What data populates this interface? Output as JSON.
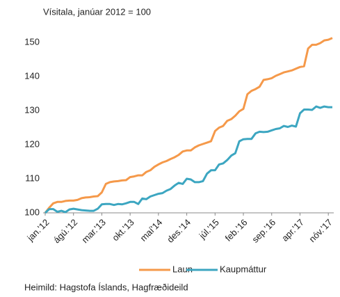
{
  "chart_data": {
    "type": "line",
    "subtitle": "Vísitala, janúar 2012 = 100",
    "source": "Heimild: Hagstofa Íslands, Hagfræðideild",
    "categories": [
      "jan.'12",
      null,
      null,
      null,
      null,
      null,
      null,
      "ágú.'12",
      null,
      null,
      null,
      null,
      null,
      null,
      "mar.'13",
      null,
      null,
      null,
      null,
      null,
      null,
      "okt.'13",
      null,
      null,
      null,
      null,
      null,
      null,
      "maí'14",
      null,
      null,
      null,
      null,
      null,
      null,
      "des.'14",
      null,
      null,
      null,
      null,
      null,
      null,
      "júl.'15",
      null,
      null,
      null,
      null,
      null,
      null,
      "feb.'16",
      null,
      null,
      null,
      null,
      null,
      null,
      "sep.'16",
      null,
      null,
      null,
      null,
      null,
      null,
      "apr.'17",
      null,
      null,
      null,
      null,
      null,
      null,
      "nóv.'17",
      null
    ],
    "series": [
      {
        "name": "Laun",
        "color": "#f5994a",
        "values": [
          100,
          101.5,
          102.8,
          103.2,
          103.2,
          103.5,
          103.6,
          103.6,
          103.8,
          104.3,
          104.5,
          104.6,
          104.8,
          104.9,
          106,
          108.5,
          109,
          109.2,
          109.3,
          109.5,
          109.6,
          110.5,
          110.7,
          111,
          111,
          112,
          112.5,
          113.5,
          114.2,
          114.8,
          115.2,
          115.8,
          116.3,
          117,
          118,
          118.3,
          118.3,
          119.2,
          119.8,
          120.2,
          120.6,
          121,
          124,
          125,
          125.5,
          127,
          127.5,
          128.5,
          129.8,
          130.5,
          134.8,
          135.8,
          136.3,
          137,
          139,
          139.2,
          139.5,
          140.2,
          140.7,
          141.2,
          141.5,
          141.8,
          142.3,
          142.8,
          143,
          148.2,
          149.3,
          149.3,
          149.8,
          150.6,
          150.8,
          151.3
        ]
      },
      {
        "name": "Kaupmáttur",
        "color": "#3ca6c1",
        "values": [
          100,
          101.1,
          101.1,
          100.3,
          100.6,
          100.2,
          101,
          101.2,
          101,
          100.8,
          100.7,
          100.6,
          100.6,
          101.2,
          102.5,
          102.6,
          102.6,
          102.3,
          102.6,
          102.5,
          102.8,
          103.2,
          103.2,
          102.6,
          104.2,
          104,
          104.8,
          105.2,
          105.6,
          105.8,
          106.5,
          107,
          108,
          108.8,
          108.5,
          110,
          109.8,
          109,
          109,
          109.3,
          111.5,
          112.5,
          112.5,
          114.2,
          114.5,
          115.5,
          116.8,
          117.5,
          121,
          121.6,
          121.7,
          121.7,
          123.3,
          123.8,
          123.7,
          123.8,
          124.2,
          124.6,
          124.8,
          125.5,
          125.2,
          125.6,
          125.3,
          129.2,
          130.3,
          130.3,
          130.2,
          131.2,
          130.8,
          131.2,
          131,
          131
        ]
      }
    ],
    "ylim": [
      100,
      150
    ],
    "yticks": [
      100,
      110,
      120,
      130,
      140,
      150
    ]
  }
}
